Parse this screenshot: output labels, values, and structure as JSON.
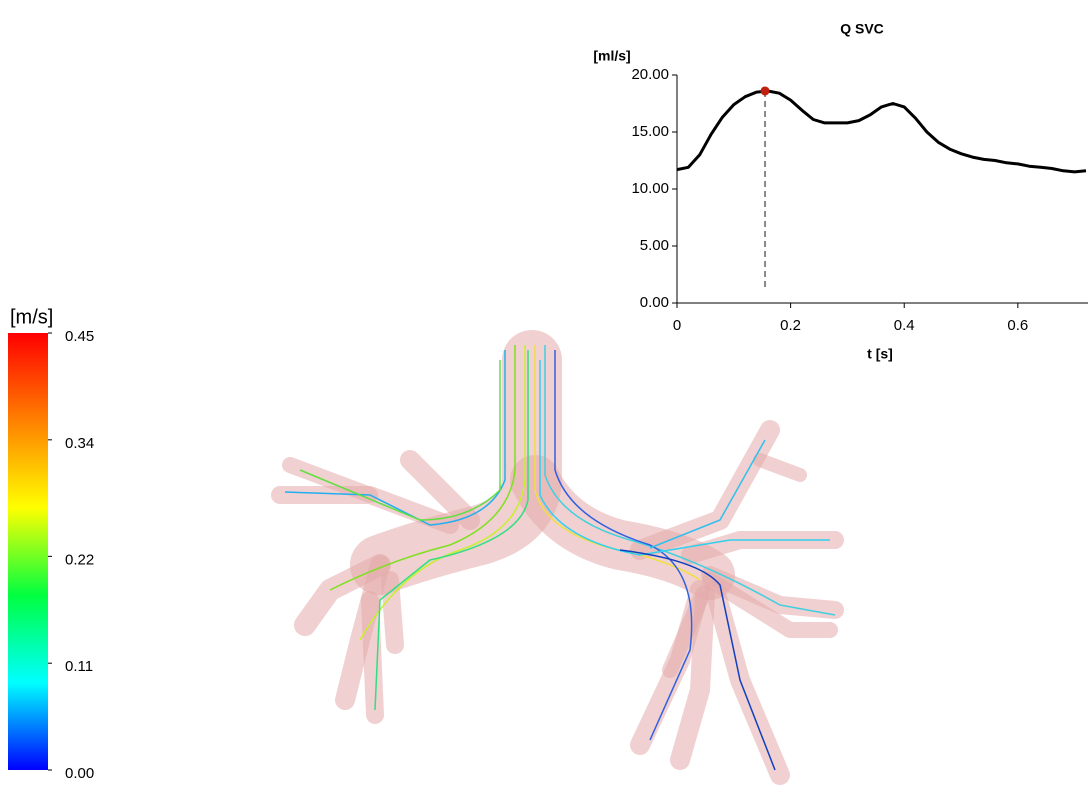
{
  "chart_data": [
    {
      "type": "line",
      "title": "Q SVC",
      "y_label": "[ml/s]",
      "x_label": "t [s]",
      "x": [
        0,
        0.02,
        0.04,
        0.06,
        0.08,
        0.1,
        0.12,
        0.14,
        0.16,
        0.18,
        0.2,
        0.22,
        0.24,
        0.26,
        0.28,
        0.3,
        0.32,
        0.34,
        0.36,
        0.38,
        0.4,
        0.42,
        0.44,
        0.46,
        0.48,
        0.5,
        0.52,
        0.54,
        0.56,
        0.58,
        0.6,
        0.62,
        0.64,
        0.66,
        0.68,
        0.7,
        0.72
      ],
      "series": [
        {
          "color": "#000000",
          "values": [
            11.7,
            11.9,
            13.0,
            14.8,
            16.3,
            17.4,
            18.1,
            18.5,
            18.6,
            18.4,
            17.8,
            16.9,
            16.1,
            15.8,
            15.8,
            15.8,
            16.0,
            16.5,
            17.2,
            17.5,
            17.2,
            16.2,
            15.0,
            14.1,
            13.5,
            13.1,
            12.8,
            12.6,
            12.5,
            12.3,
            12.2,
            12.0,
            11.9,
            11.8,
            11.6,
            11.5,
            11.6
          ]
        }
      ],
      "highlight": {
        "x": 0.155,
        "y": 18.6,
        "color": "#c0200f"
      },
      "xlim": [
        0,
        0.72
      ],
      "ylim": [
        0,
        20
      ],
      "xticks": [
        0,
        0.2,
        0.4,
        0.6
      ],
      "yticks": [
        {
          "value": 0,
          "label": "0.00"
        },
        {
          "value": 5,
          "label": "5.00"
        },
        {
          "value": 10,
          "label": "10.00"
        },
        {
          "value": 15,
          "label": "15.00"
        },
        {
          "value": 20,
          "label": "20.00"
        }
      ]
    },
    {
      "type": "colorbar",
      "title": "[m/s]",
      "ylim": [
        0,
        0.45
      ],
      "colors": [
        "#0000ff",
        "#00ffff",
        "#00ff40",
        "#ffff00",
        "#ff8000",
        "#ff0000"
      ],
      "yticks": [
        {
          "value": 0,
          "label": "0.00"
        },
        0.11,
        0.22,
        0.34,
        0.45
      ]
    }
  ]
}
